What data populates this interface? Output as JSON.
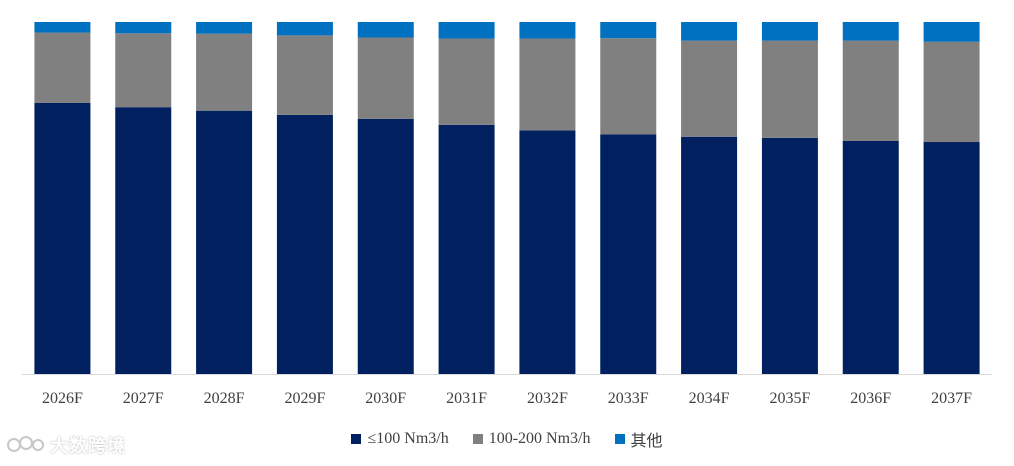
{
  "chart_data": {
    "type": "bar",
    "stacked": true,
    "normalized": true,
    "categories": [
      "2026F",
      "2027F",
      "2028F",
      "2029F",
      "2030F",
      "2031F",
      "2032F",
      "2033F",
      "2034F",
      "2035F",
      "2036F",
      "2037F"
    ],
    "series": [
      {
        "name": "≤100 Nm3/h",
        "color": "#002060",
        "values": [
          77.0,
          75.8,
          74.8,
          73.6,
          72.5,
          70.8,
          69.2,
          68.1,
          67.4,
          67.1,
          66.2,
          65.9
        ]
      },
      {
        "name": "100-200 Nm3/h",
        "color": "#808080",
        "values": [
          20.0,
          21.0,
          21.9,
          22.6,
          23.1,
          24.5,
          26.1,
          27.3,
          27.3,
          27.6,
          28.5,
          28.5
        ]
      },
      {
        "name": "其他",
        "color": "#0070C0",
        "values": [
          3.0,
          3.2,
          3.3,
          3.8,
          4.4,
          4.7,
          4.7,
          4.6,
          5.3,
          5.3,
          5.3,
          5.6
        ]
      }
    ],
    "ylim": [
      0,
      100
    ],
    "grid": false,
    "legend_position": "bottom"
  },
  "watermark": {
    "text": "大数跨境"
  }
}
